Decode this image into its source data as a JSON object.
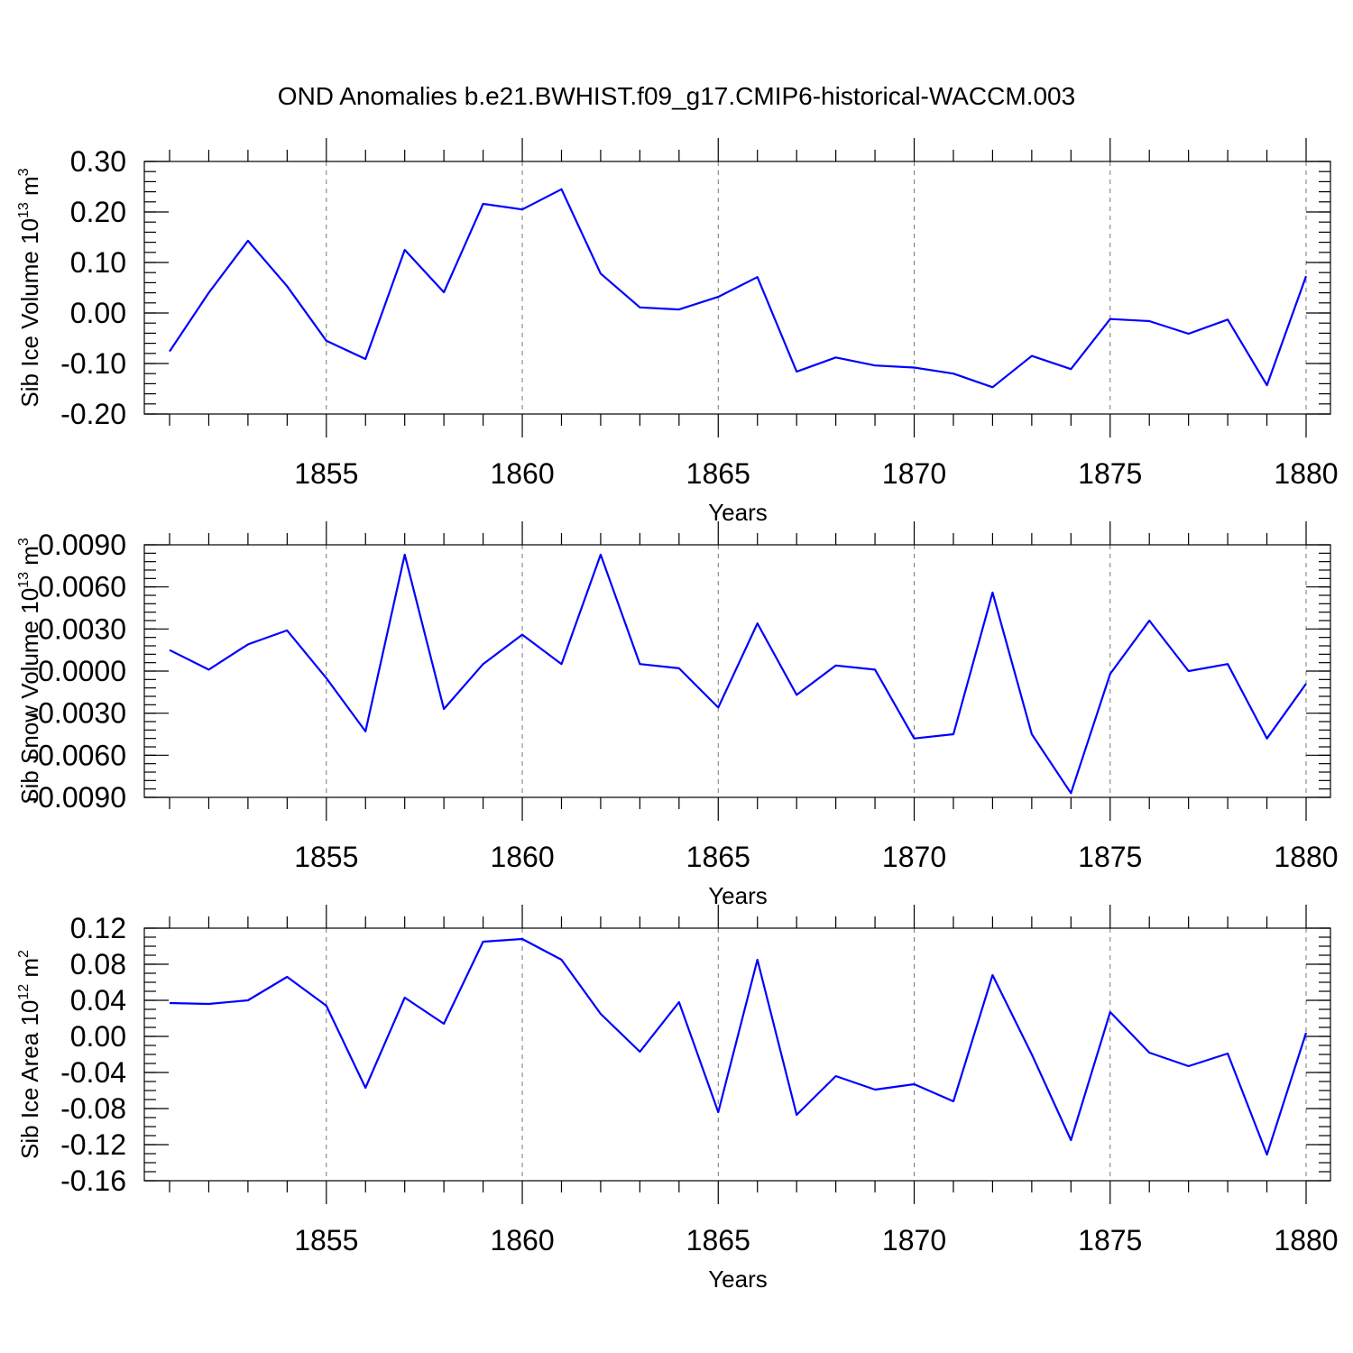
{
  "figure": {
    "title": "OND Anomalies b.e21.BWHIST.f09_g17.CMIP6-historical-WACCM.003"
  },
  "chart_data": [
    {
      "type": "line",
      "title": "",
      "xlabel": "Years",
      "ylabel": "Sib Ice Volume 10",
      "ylabel_exp": "13",
      "ylabel_tail": " m",
      "ylabel_unit_exp": "3",
      "xlim": [
        1851,
        1880
      ],
      "ylim": [
        -0.2,
        0.3
      ],
      "xticks": [
        1855,
        1860,
        1865,
        1870,
        1875,
        1880
      ],
      "yticks": [
        0.3,
        0.2,
        0.1,
        0.0,
        -0.1,
        -0.2
      ],
      "ytick_labels": [
        "0.30",
        "0.20",
        "0.10",
        "0.00",
        "-0.10",
        "-0.20"
      ],
      "ymajor_step": 0.1,
      "yminor_step": 0.02,
      "grid_x": true,
      "color": "#0000ff",
      "series": [
        {
          "x": [
            1851,
            1852,
            1853,
            1854,
            1855,
            1856,
            1857,
            1858,
            1859,
            1860,
            1861,
            1862,
            1863,
            1864,
            1865,
            1866,
            1867,
            1868,
            1869,
            1870,
            1871,
            1872,
            1873,
            1874,
            1875,
            1876,
            1877,
            1878,
            1879,
            1880
          ],
          "values": [
            -0.076,
            0.04,
            0.143,
            0.053,
            -0.055,
            -0.091,
            0.125,
            0.041,
            0.216,
            0.205,
            0.245,
            0.078,
            0.011,
            0.007,
            0.032,
            0.071,
            -0.116,
            -0.088,
            -0.104,
            -0.108,
            -0.12,
            -0.147,
            -0.085,
            -0.111,
            -0.012,
            -0.016,
            -0.041,
            -0.013,
            -0.143,
            0.073
          ]
        }
      ]
    },
    {
      "type": "line",
      "title": "",
      "xlabel": "Years",
      "ylabel": "Sib Snow Volume 10",
      "ylabel_exp": "13",
      "ylabel_tail": " m",
      "ylabel_unit_exp": "3",
      "xlim": [
        1851,
        1880
      ],
      "ylim": [
        -0.009,
        0.009
      ],
      "xticks": [
        1855,
        1860,
        1865,
        1870,
        1875,
        1880
      ],
      "yticks": [
        0.009,
        0.006,
        0.003,
        0.0,
        -0.003,
        -0.006,
        -0.009
      ],
      "ytick_labels": [
        "0.0090",
        "0.0060",
        "0.0030",
        "0.0000",
        "-0.0030",
        "-0.0060",
        "-0.0090"
      ],
      "ymajor_step": 0.003,
      "yminor_step": 0.0006,
      "grid_x": true,
      "color": "#0000ff",
      "series": [
        {
          "x": [
            1851,
            1852,
            1853,
            1854,
            1855,
            1856,
            1857,
            1858,
            1859,
            1860,
            1861,
            1862,
            1863,
            1864,
            1865,
            1866,
            1867,
            1868,
            1869,
            1870,
            1871,
            1872,
            1873,
            1874,
            1875,
            1876,
            1877,
            1878,
            1879,
            1880
          ],
          "values": [
            0.0015,
            0.0001,
            0.0019,
            0.0029,
            -0.0005,
            -0.0043,
            0.0083,
            -0.0027,
            0.0005,
            0.0026,
            0.0005,
            0.0083,
            0.0005,
            0.0002,
            -0.0026,
            0.0034,
            -0.0017,
            0.0004,
            0.0001,
            -0.0048,
            -0.0045,
            0.0056,
            -0.0045,
            -0.0087,
            -0.0002,
            0.0036,
            0.0,
            0.0005,
            -0.0048,
            -0.0009
          ]
        }
      ]
    },
    {
      "type": "line",
      "title": "",
      "xlabel": "Years",
      "ylabel": "Sib Ice Area 10",
      "ylabel_exp": "12",
      "ylabel_tail": " m",
      "ylabel_unit_exp": "2",
      "xlim": [
        1851,
        1880
      ],
      "ylim": [
        -0.16,
        0.12
      ],
      "xticks": [
        1855,
        1860,
        1865,
        1870,
        1875,
        1880
      ],
      "yticks": [
        0.12,
        0.08,
        0.04,
        0.0,
        -0.04,
        -0.08,
        -0.12,
        -0.16
      ],
      "ytick_labels": [
        "0.12",
        "0.08",
        "0.04",
        "0.00",
        "-0.04",
        "-0.08",
        "-0.12",
        "-0.16"
      ],
      "ymajor_step": 0.04,
      "yminor_step": 0.01,
      "grid_x": true,
      "color": "#0000ff",
      "series": [
        {
          "x": [
            1851,
            1852,
            1853,
            1854,
            1855,
            1856,
            1857,
            1858,
            1859,
            1860,
            1861,
            1862,
            1863,
            1864,
            1865,
            1866,
            1867,
            1868,
            1869,
            1870,
            1871,
            1872,
            1873,
            1874,
            1875,
            1876,
            1877,
            1878,
            1879,
            1880
          ],
          "values": [
            0.037,
            0.036,
            0.04,
            0.066,
            0.034,
            -0.057,
            0.043,
            0.014,
            0.105,
            0.108,
            0.085,
            0.025,
            -0.017,
            0.038,
            -0.084,
            0.085,
            -0.087,
            -0.044,
            -0.059,
            -0.053,
            -0.072,
            0.068,
            -0.02,
            -0.115,
            0.027,
            -0.018,
            -0.033,
            -0.019,
            -0.131,
            0.004
          ]
        }
      ]
    }
  ]
}
